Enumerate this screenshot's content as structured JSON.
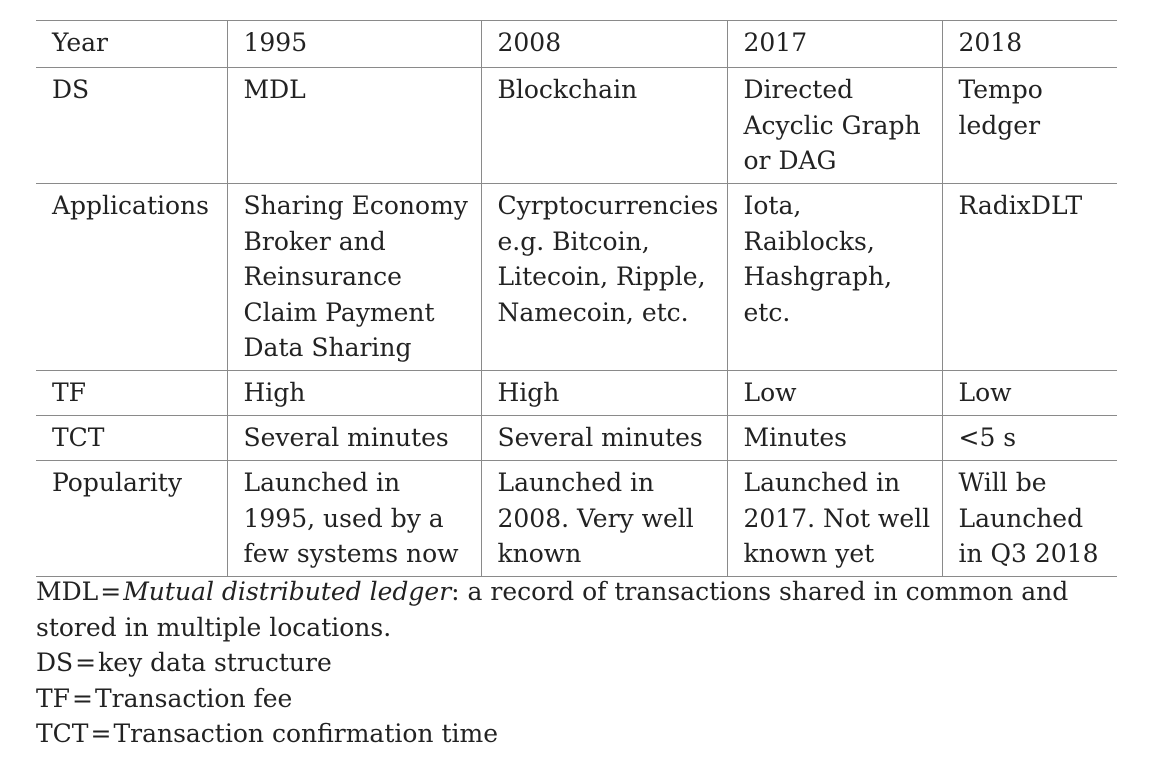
{
  "table": {
    "rows": [
      {
        "key": "year",
        "cells": [
          [
            "Year"
          ],
          [
            "1995"
          ],
          [
            "2008"
          ],
          [
            "2017"
          ],
          [
            "2018"
          ]
        ]
      },
      {
        "key": "ds",
        "cells": [
          [
            "DS"
          ],
          [
            "MDL"
          ],
          [
            "Blockchain"
          ],
          [
            "Directed",
            "Acyclic Graph",
            "or DAG"
          ],
          [
            "Tempo",
            "ledger"
          ]
        ]
      },
      {
        "key": "applications",
        "cells": [
          [
            "Applications"
          ],
          [
            "Sharing Economy",
            "Broker and",
            "Reinsurance",
            "Claim Payment",
            "Data Sharing"
          ],
          [
            "Cyrptocurrencies",
            "e.g. Bitcoin,",
            "Litecoin, Ripple,",
            "Namecoin, etc."
          ],
          [
            "Iota,",
            "Raiblocks,",
            "Hashgraph,",
            "etc."
          ],
          [
            "RadixDLT"
          ]
        ]
      },
      {
        "key": "tf",
        "cells": [
          [
            "TF"
          ],
          [
            "High"
          ],
          [
            "High"
          ],
          [
            "Low"
          ],
          [
            "Low"
          ]
        ]
      },
      {
        "key": "tct",
        "cells": [
          [
            "TCT"
          ],
          [
            "Several minutes"
          ],
          [
            "Several minutes"
          ],
          [
            "Minutes"
          ],
          [
            "<5 s"
          ]
        ]
      },
      {
        "key": "popularity",
        "cells": [
          [
            "Popularity"
          ],
          [
            "Launched in",
            "1995, used by a",
            "few systems now"
          ],
          [
            "Launched in",
            "2008. Very well",
            "known"
          ],
          [
            "Launched in",
            "2017. Not well",
            "known yet"
          ],
          [
            "Will be",
            "Launched",
            "in Q3 2018"
          ]
        ]
      }
    ]
  },
  "notes": {
    "mdl": {
      "term": "MDL",
      "eq": "=",
      "italic": "Mutual distributed ledger",
      "rest_line1": ": a record of transactions shared in common and",
      "rest_line2": "stored in multiple locations."
    },
    "ds": {
      "term": "DS",
      "eq": "=",
      "text": "key data structure"
    },
    "tf": {
      "term": "TF",
      "eq": "=",
      "text": "Transaction fee"
    },
    "tct": {
      "term": "TCT",
      "eq": "=",
      "text": "Transaction confirmation time"
    }
  }
}
